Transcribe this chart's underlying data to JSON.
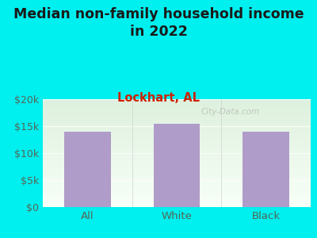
{
  "title": "Median non-family household income\nin 2022",
  "subtitle": "Lockhart, AL",
  "categories": [
    "All",
    "White",
    "Black"
  ],
  "values": [
    13900,
    15400,
    13900
  ],
  "bar_color": "#b09cc8",
  "background_outer": "#00EFEF",
  "bg_top": "#ddf0dd",
  "bg_bottom": "#f8fff8",
  "title_color": "#1a1a1a",
  "subtitle_color": "#cc2200",
  "tick_label_color": "#556655",
  "ylim": [
    0,
    20000
  ],
  "yticks": [
    0,
    5000,
    10000,
    15000,
    20000
  ],
  "ytick_labels": [
    "$0",
    "$5k",
    "$10k",
    "$15k",
    "$20k"
  ],
  "watermark": "City-Data.com",
  "title_fontsize": 12.5,
  "subtitle_fontsize": 10.5
}
